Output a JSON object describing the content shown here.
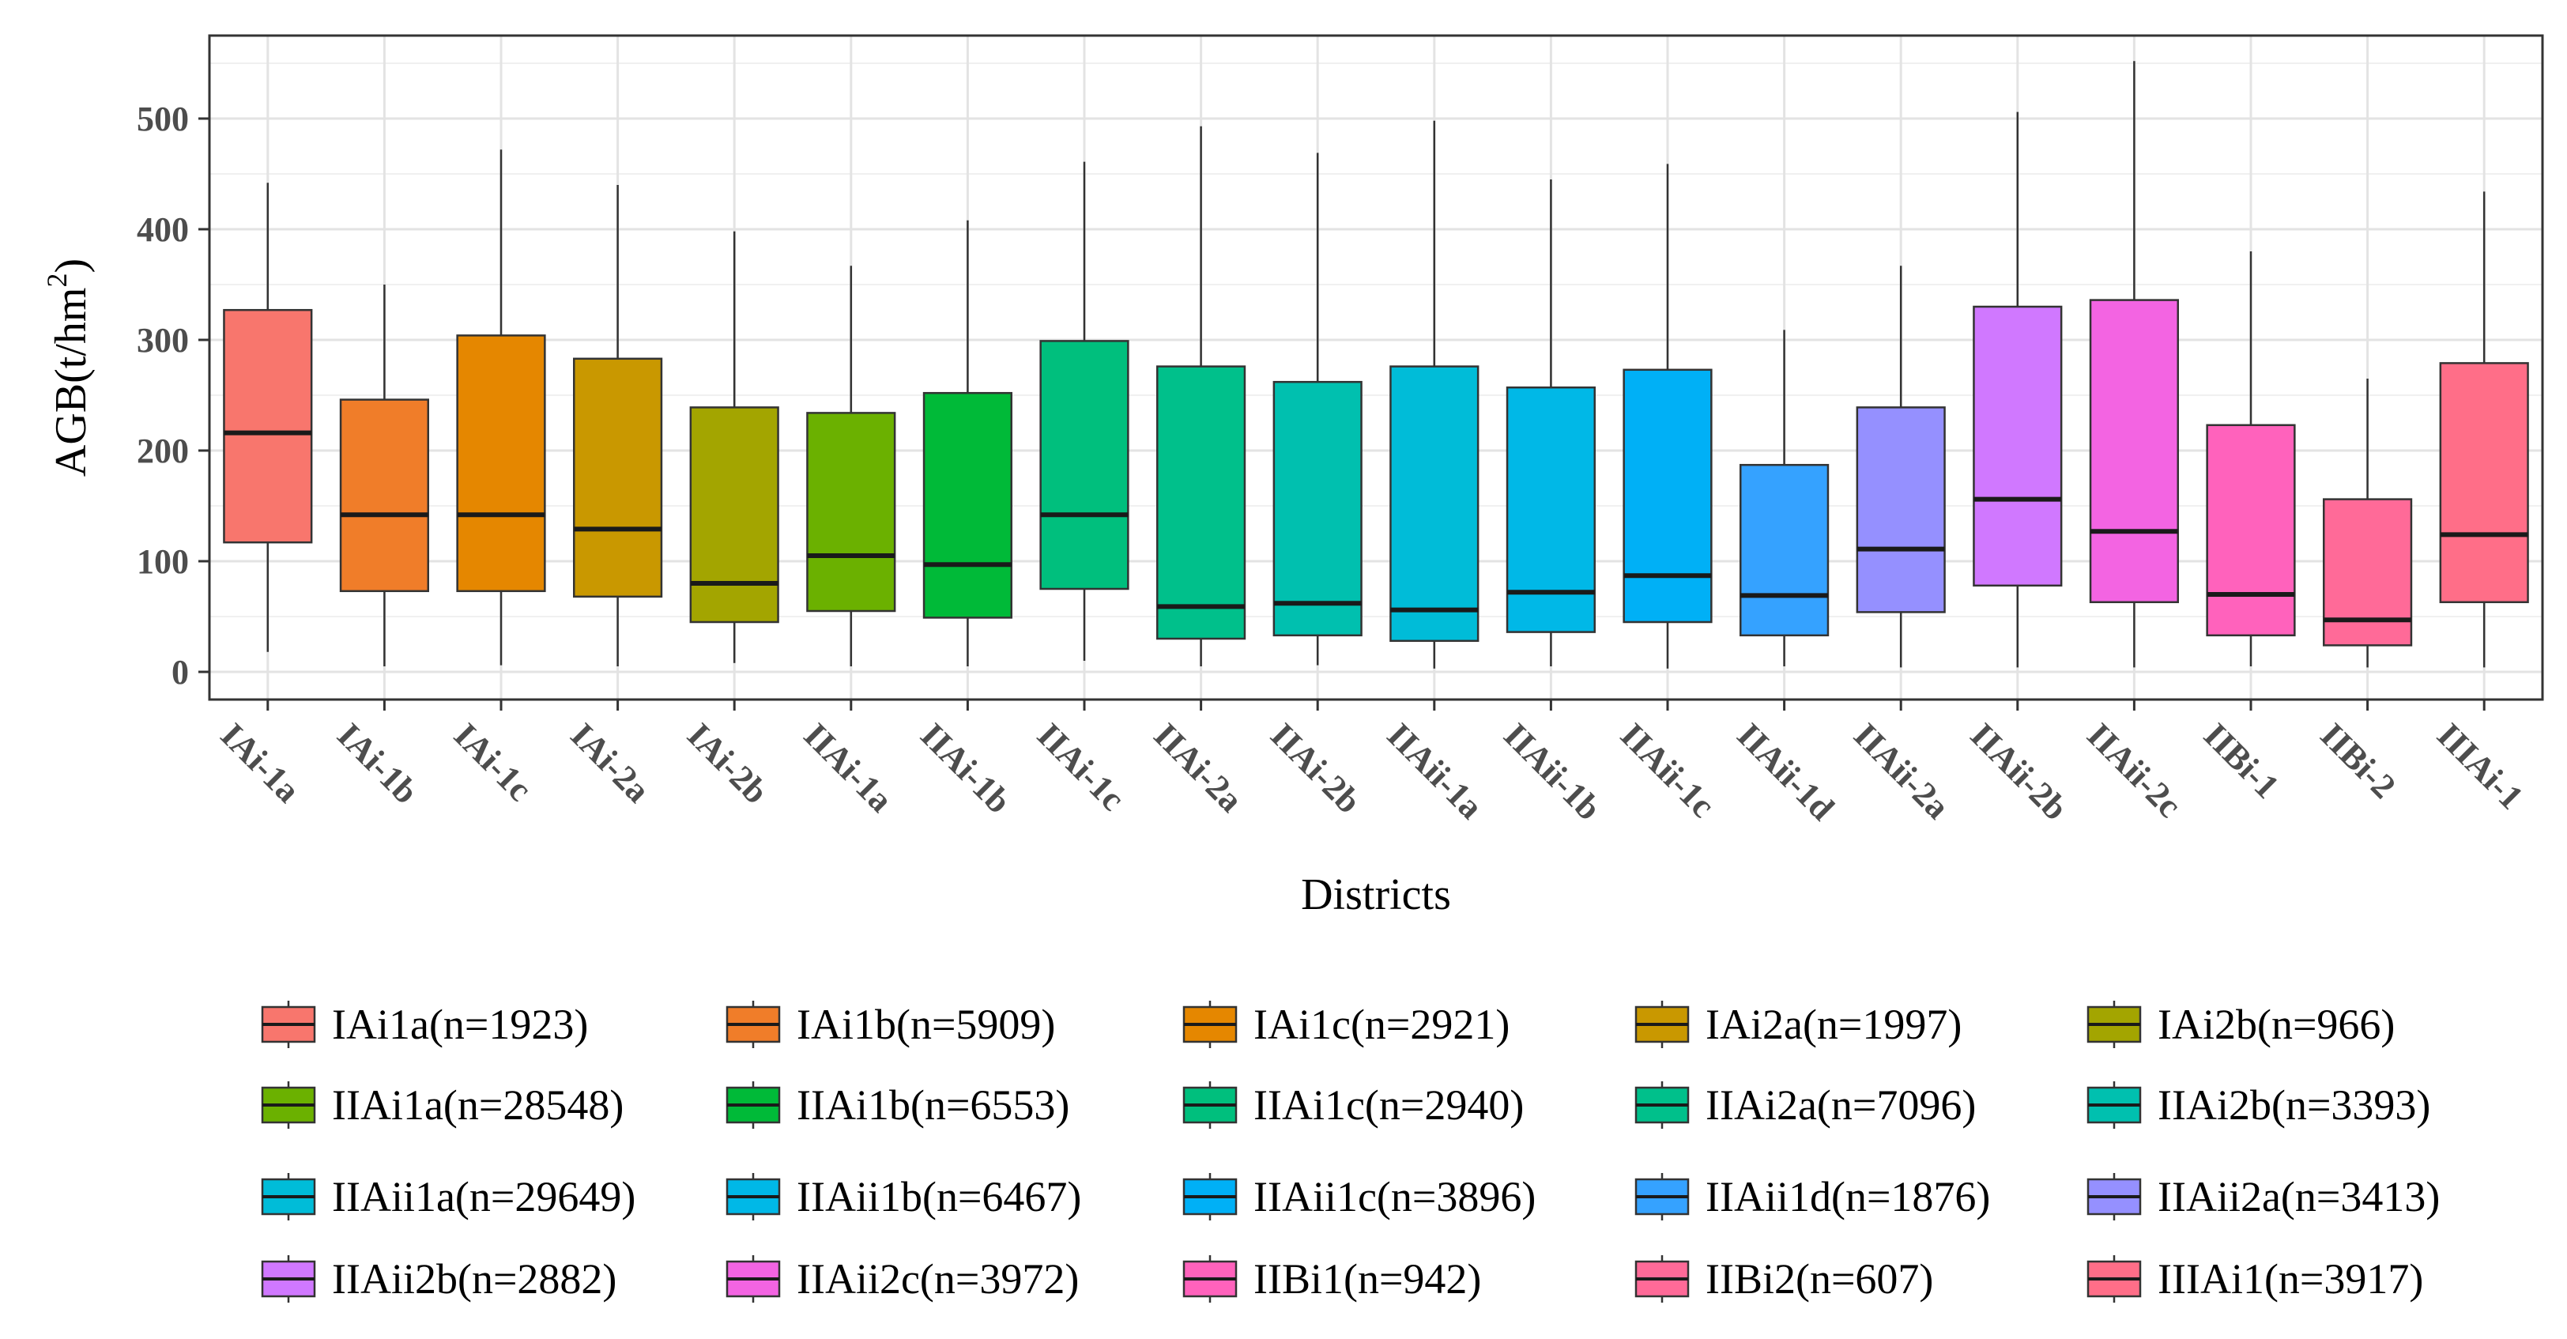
{
  "chart_data": {
    "type": "boxplot",
    "title": "",
    "xlabel": "Districts",
    "ylabel": "AGB(t/hm²)",
    "ylabel_parts": {
      "base": "AGB(t/hm",
      "sup": "2",
      "close": ")"
    },
    "ylim": [
      -25,
      575
    ],
    "yticks": [
      0,
      100,
      200,
      300,
      400,
      500
    ],
    "grid": true,
    "legend_position": "bottom",
    "categories": [
      "IAi-1a",
      "IAi-1b",
      "IAi-1c",
      "IAi-2a",
      "IAi-2b",
      "IIAi-1a",
      "IIAi-1b",
      "IIAi-1c",
      "IIAi-2a",
      "IIAi-2b",
      "IIAii-1a",
      "IIAii-1b",
      "IIAii-1c",
      "IIAii-1d",
      "IIAii-2a",
      "IIAii-2b",
      "IIAii-2c",
      "IIBi-1",
      "IIBi-2",
      "IIIAi-1"
    ],
    "series": [
      {
        "name": "IAi1a(n=1923)",
        "color": "#F8766D",
        "min": 18,
        "q1": 117,
        "median": 216,
        "q3": 327,
        "max": 442
      },
      {
        "name": "IAi1b(n=5909)",
        "color": "#F07D29",
        "min": 5,
        "q1": 73,
        "median": 142,
        "q3": 246,
        "max": 350
      },
      {
        "name": "IAi1c(n=2921)",
        "color": "#E58700",
        "min": 6,
        "q1": 73,
        "median": 142,
        "q3": 304,
        "max": 472
      },
      {
        "name": "IAi2a(n=1997)",
        "color": "#C99800",
        "min": 5,
        "q1": 68,
        "median": 129,
        "q3": 283,
        "max": 440
      },
      {
        "name": "IAi2b(n=966)",
        "color": "#A3A500",
        "min": 8,
        "q1": 45,
        "median": 80,
        "q3": 239,
        "max": 398
      },
      {
        "name": "IIAi1a(n=28548)",
        "color": "#6BB100",
        "min": 5,
        "q1": 55,
        "median": 105,
        "q3": 234,
        "max": 367
      },
      {
        "name": "IIAi1b(n=6553)",
        "color": "#00BA38",
        "min": 5,
        "q1": 49,
        "median": 97,
        "q3": 252,
        "max": 408
      },
      {
        "name": "IIAi1c(n=2940)",
        "color": "#00BF7D",
        "min": 10,
        "q1": 75,
        "median": 142,
        "q3": 299,
        "max": 461
      },
      {
        "name": "IIAi2a(n=7096)",
        "color": "#00C08B",
        "min": 5,
        "q1": 30,
        "median": 59,
        "q3": 276,
        "max": 493
      },
      {
        "name": "IIAi2b(n=3393)",
        "color": "#00C0AF",
        "min": 6,
        "q1": 33,
        "median": 62,
        "q3": 262,
        "max": 469
      },
      {
        "name": "IIAii1a(n=29649)",
        "color": "#00BCD8",
        "min": 3,
        "q1": 28,
        "median": 56,
        "q3": 276,
        "max": 498
      },
      {
        "name": "IIAii1b(n=6467)",
        "color": "#00B8E7",
        "min": 5,
        "q1": 36,
        "median": 72,
        "q3": 257,
        "max": 445
      },
      {
        "name": "IIAii1c(n=3896)",
        "color": "#00B0F6",
        "min": 3,
        "q1": 45,
        "median": 87,
        "q3": 273,
        "max": 459
      },
      {
        "name": "IIAii1d(n=1876)",
        "color": "#35A2FF",
        "min": 5,
        "q1": 33,
        "median": 69,
        "q3": 187,
        "max": 309
      },
      {
        "name": "IIAii2a(n=3413)",
        "color": "#9590FF",
        "min": 4,
        "q1": 54,
        "median": 111,
        "q3": 239,
        "max": 367
      },
      {
        "name": "IIAii2b(n=2882)",
        "color": "#D078FF",
        "min": 4,
        "q1": 78,
        "median": 156,
        "q3": 330,
        "max": 506
      },
      {
        "name": "IIAii2c(n=3972)",
        "color": "#F364E2",
        "min": 4,
        "q1": 63,
        "median": 127,
        "q3": 336,
        "max": 552
      },
      {
        "name": "IIBi1(n=942)",
        "color": "#FF62BC",
        "min": 5,
        "q1": 33,
        "median": 70,
        "q3": 223,
        "max": 380
      },
      {
        "name": "IIBi2(n=607)",
        "color": "#FF6A98",
        "min": 4,
        "q1": 24,
        "median": 47,
        "q3": 156,
        "max": 265
      },
      {
        "name": "IIIAi1(n=3917)",
        "color": "#FF6E88",
        "min": 4,
        "q1": 63,
        "median": 124,
        "q3": 279,
        "max": 434
      }
    ]
  }
}
